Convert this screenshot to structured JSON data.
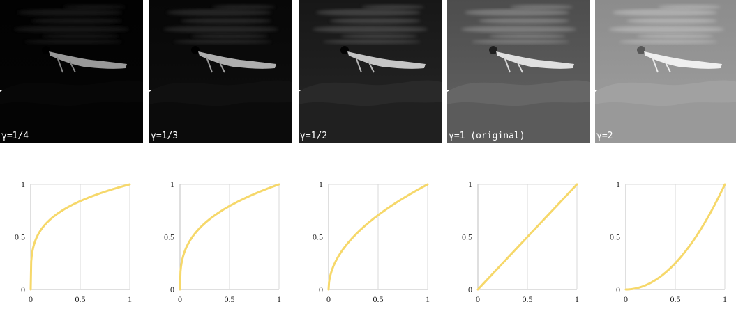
{
  "panels": [
    {
      "label": "γ=1/4",
      "gamma": 0.25
    },
    {
      "label": "γ=1/3",
      "gamma": 0.3333
    },
    {
      "label": "γ=1/2",
      "gamma": 0.5
    },
    {
      "label": "γ=1 (original)",
      "gamma": 1
    },
    {
      "label": "γ=2",
      "gamma": 2
    }
  ],
  "chart_data": [
    {
      "type": "line",
      "x_ticks": [
        "0",
        "0.5",
        "1"
      ],
      "y_ticks": [
        "0",
        "0.5",
        "1"
      ],
      "xlim": [
        0,
        1
      ],
      "ylim": [
        0,
        1
      ],
      "grid": true,
      "series": [
        {
          "function": "y = x^0.25",
          "color": "#f6d86a"
        }
      ]
    },
    {
      "type": "line",
      "x_ticks": [
        "0",
        "0.5",
        "1"
      ],
      "y_ticks": [
        "0",
        "0.5",
        "1"
      ],
      "xlim": [
        0,
        1
      ],
      "ylim": [
        0,
        1
      ],
      "grid": true,
      "series": [
        {
          "function": "y = x^(1/3)",
          "color": "#f6d86a"
        }
      ]
    },
    {
      "type": "line",
      "x_ticks": [
        "0",
        "0.5",
        "1"
      ],
      "y_ticks": [
        "0",
        "0.5",
        "1"
      ],
      "xlim": [
        0,
        1
      ],
      "ylim": [
        0,
        1
      ],
      "grid": true,
      "series": [
        {
          "function": "y = x^0.5",
          "color": "#f6d86a"
        }
      ]
    },
    {
      "type": "line",
      "x_ticks": [
        "0",
        "0.5",
        "1"
      ],
      "y_ticks": [
        "0",
        "0.5",
        "1"
      ],
      "xlim": [
        0,
        1
      ],
      "ylim": [
        0,
        1
      ],
      "grid": true,
      "series": [
        {
          "function": "y = x^1",
          "color": "#f6d86a"
        }
      ]
    },
    {
      "type": "line",
      "x_ticks": [
        "0",
        "0.5",
        "1"
      ],
      "y_ticks": [
        "0",
        "0.5",
        "1"
      ],
      "xlim": [
        0,
        1
      ],
      "ylim": [
        0,
        1
      ],
      "grid": true,
      "series": [
        {
          "function": "y = x^2",
          "color": "#f6d86a"
        }
      ]
    }
  ]
}
